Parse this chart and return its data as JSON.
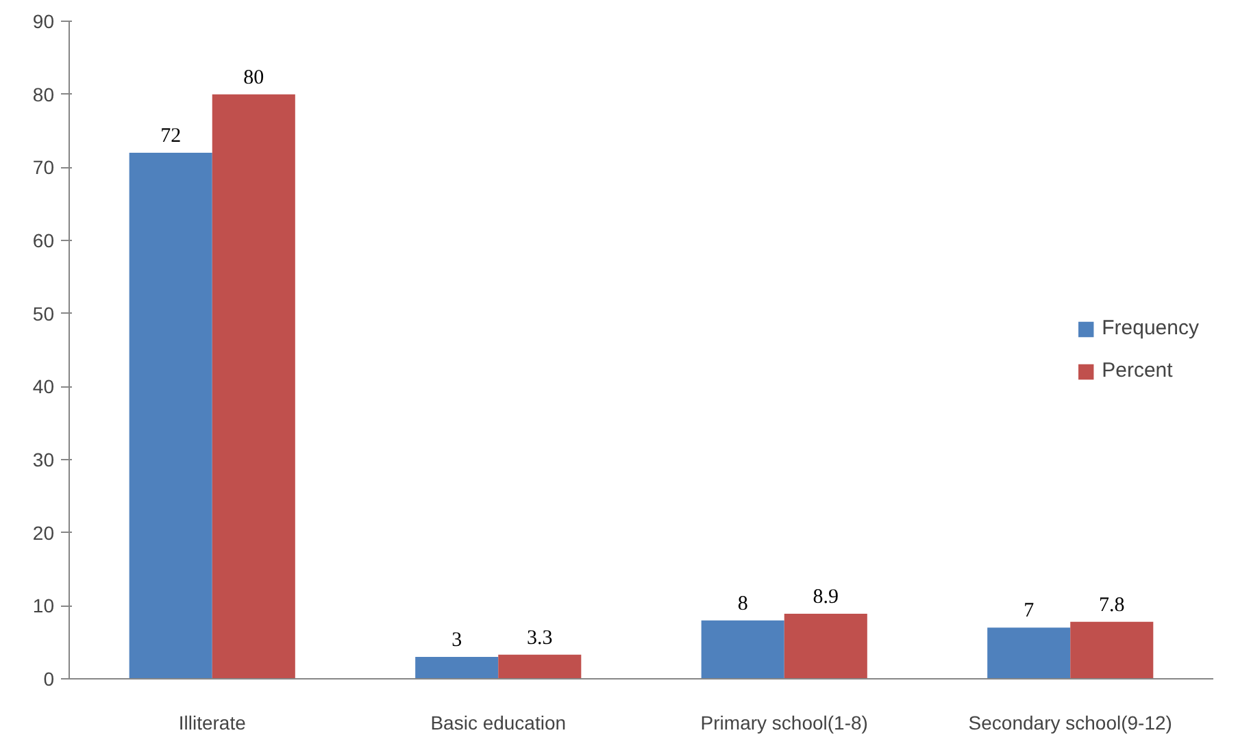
{
  "chart_data": {
    "type": "bar",
    "categories": [
      "Illiterate",
      "Basic education",
      "Primary school(1-8)",
      "Secondary school(9-12)"
    ],
    "series": [
      {
        "name": "Frequency",
        "color": "#4f81bd",
        "values": [
          72,
          3,
          8,
          7
        ]
      },
      {
        "name": "Percent",
        "color": "#c0504d",
        "values": [
          80,
          3.3,
          8.9,
          7.8
        ]
      }
    ],
    "ylim": [
      0,
      90
    ],
    "yticks": [
      0,
      10,
      20,
      30,
      40,
      50,
      60,
      70,
      80,
      90
    ],
    "grid": false,
    "legend": "right",
    "data_labels": true
  }
}
